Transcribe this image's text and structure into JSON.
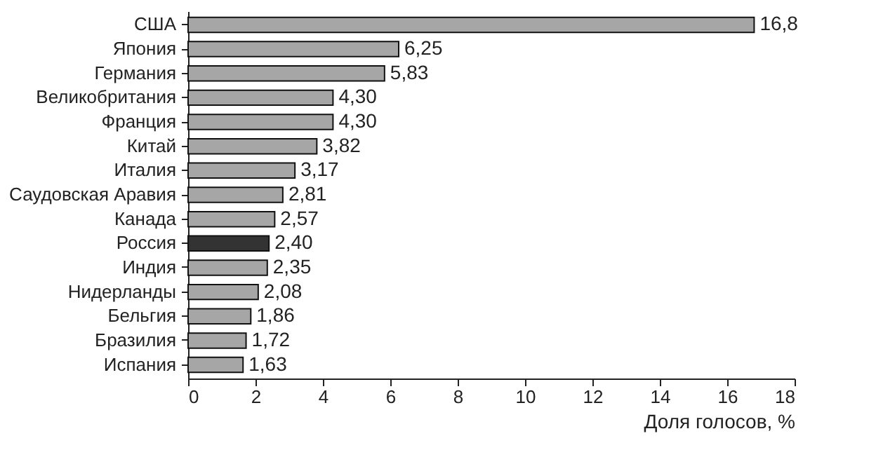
{
  "chart_data": {
    "type": "bar",
    "orientation": "horizontal",
    "xlabel": "Доля голосов, %",
    "categories": [
      "США",
      "Япония",
      "Германия",
      "Великобритания",
      "Франция",
      "Китай",
      "Италия",
      "Саудовская Аравия",
      "Канада",
      "Россия",
      "Индия",
      "Нидерланды",
      "Бельгия",
      "Бразилия",
      "Испания"
    ],
    "values": [
      16.8,
      6.25,
      5.83,
      4.3,
      4.3,
      3.82,
      3.17,
      2.81,
      2.57,
      2.4,
      2.35,
      2.08,
      1.86,
      1.72,
      1.63
    ],
    "colors": [
      "#a6a6a6",
      "#a6a6a6",
      "#a6a6a6",
      "#a6a6a6",
      "#a6a6a6",
      "#a6a6a6",
      "#a6a6a6",
      "#a6a6a6",
      "#a6a6a6",
      "#333333",
      "#a6a6a6",
      "#a6a6a6",
      "#a6a6a6",
      "#a6a6a6",
      "#a6a6a6"
    ],
    "value_labels": [
      "16,8",
      "6,25",
      "5,83",
      "4,30",
      "4,30",
      "3,82",
      "3,17",
      "2,81",
      "2,57",
      "2,40",
      "2,35",
      "2,08",
      "1,86",
      "1,72",
      "1,63"
    ],
    "xlim": [
      0,
      18
    ],
    "xticks": [
      0,
      2,
      4,
      6,
      8,
      10,
      12,
      14,
      16,
      18
    ]
  }
}
